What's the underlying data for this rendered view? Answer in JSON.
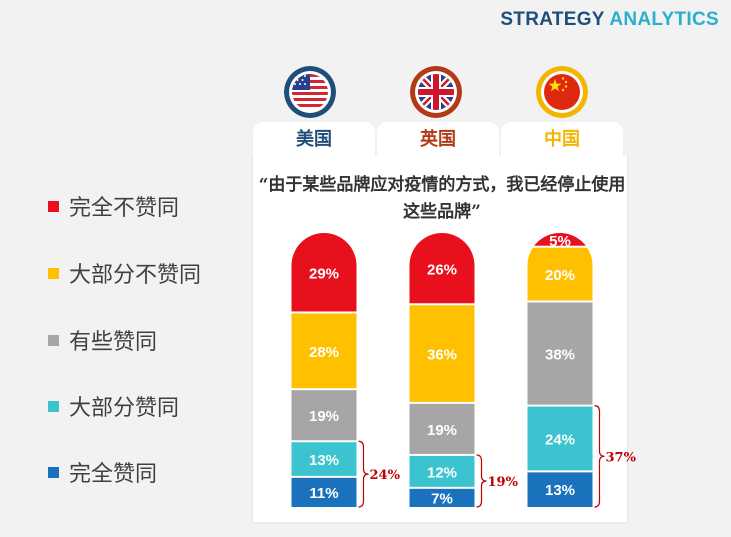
{
  "header": {
    "brand_part1": "STRATEGY",
    "brand_part2": "ANALYTICS"
  },
  "colors": {
    "brand_dark": "#1f4e79",
    "brand_light": "#2ab0cc",
    "us_tab": "#1f4e79",
    "uk_tab": "#b23a16",
    "cn_tab": "#f2b600",
    "sum_label": "#c00000"
  },
  "legend": [
    {
      "label": "完全不赞同",
      "color": "#e8101c"
    },
    {
      "label": "大部分不赞同",
      "color": "#ffc000"
    },
    {
      "label": "有些赞同",
      "color": "#a6a6a6"
    },
    {
      "label": "大部分赞同",
      "color": "#3bc4cf"
    },
    {
      "label": "完全赞同",
      "color": "#1a72bd"
    }
  ],
  "countries": [
    {
      "name": "美国",
      "flag_icon": "us-flag-icon"
    },
    {
      "name": "英国",
      "flag_icon": "uk-flag-icon"
    },
    {
      "name": "中国",
      "flag_icon": "china-flag-icon"
    }
  ],
  "chart_data": {
    "type": "bar",
    "stacked": true,
    "title": "“由于某些品牌应对疫情的方式，我已经停止使用这些品牌”",
    "categories": [
      "美国",
      "英国",
      "中国"
    ],
    "series": [
      {
        "name": "完全不赞同",
        "values": [
          29,
          26,
          5
        ],
        "labels": [
          "29%",
          "26%",
          "5%"
        ]
      },
      {
        "name": "大部分不赞同",
        "values": [
          28,
          36,
          20
        ],
        "labels": [
          "28%",
          "36%",
          "20%"
        ]
      },
      {
        "name": "有些赞同",
        "values": [
          19,
          19,
          38
        ],
        "labels": [
          "19%",
          "19%",
          "38%"
        ]
      },
      {
        "name": "大部分赞同",
        "values": [
          13,
          12,
          24
        ],
        "labels": [
          "13%",
          "12%",
          "24%"
        ]
      },
      {
        "name": "完全赞同",
        "values": [
          11,
          7,
          13
        ],
        "labels": [
          "11%",
          "7%",
          "13%"
        ]
      }
    ],
    "annotations": [
      {
        "category": "美国",
        "text": "24%",
        "covers": [
          "大部分赞同",
          "完全赞同"
        ]
      },
      {
        "category": "英国",
        "text": "19%",
        "covers": [
          "大部分赞同",
          "完全赞同"
        ]
      },
      {
        "category": "中国",
        "text": "37%",
        "covers": [
          "大部分赞同",
          "完全赞同"
        ]
      }
    ],
    "xlabel": "",
    "ylabel": "",
    "ylim": [
      0,
      100
    ],
    "legend_position": "left"
  }
}
